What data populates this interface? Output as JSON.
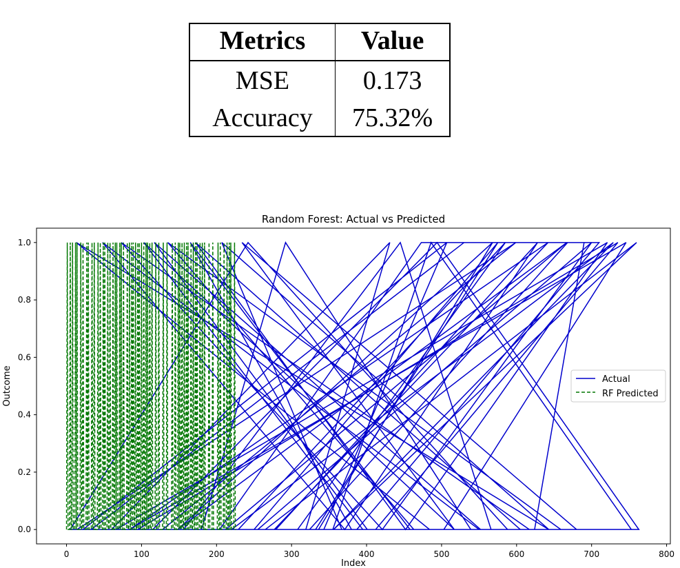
{
  "table": {
    "headers": [
      "Metrics",
      "Value"
    ],
    "rows": [
      [
        "MSE",
        "0.173"
      ],
      [
        "Accuracy",
        "75.32%"
      ]
    ]
  },
  "chart_data": {
    "type": "line",
    "title": "Random Forest: Actual vs Predicted",
    "xlabel": "Index",
    "ylabel": "Outcome",
    "xlim": [
      -40,
      805
    ],
    "ylim": [
      -0.05,
      1.05
    ],
    "xticks": [
      0,
      100,
      200,
      300,
      400,
      500,
      600,
      700,
      800
    ],
    "yticks": [
      "0.0",
      "0.2",
      "0.4",
      "0.6",
      "0.8",
      "1.0"
    ],
    "grid": false,
    "legend_position": "center-right",
    "series": [
      {
        "name": "Actual",
        "color": "#0000cc",
        "style": "solid",
        "x": [
          668,
          324,
          624,
          690,
          473,
          204,
          97,
          336,
          568,
          148,
          667,
          212,
          199,
          265,
          760,
          356,
          729,
          220,
          33,
          530,
          710,
          387,
          552,
          117,
          401,
          5,
          242,
          588,
          60,
          431,
          319,
          503,
          746,
          84,
          642,
          277,
          458,
          165,
          380,
          711,
          14,
          599,
          128,
          355,
          486,
          753,
          41,
          539,
          292,
          180,
          617,
          73,
          421,
          700,
          255,
          343,
          507,
          22,
          659,
          135,
          463,
          229,
          585,
          308,
          95,
          735,
          412,
          190,
          550,
          48,
          371,
          628,
          279,
          115,
          494,
          763,
          156,
          445,
          566,
          30,
          680,
          234,
          517,
          103,
          395,
          605,
          172,
          452,
          721,
          66,
          332,
          575,
          250,
          484,
          13,
          643,
          207,
          367,
          534,
          750
        ],
        "y": [
          1,
          0,
          0,
          1,
          1,
          0,
          0,
          0,
          1,
          0,
          1,
          0,
          0,
          0,
          1,
          0,
          1,
          0,
          0,
          1,
          1,
          0,
          0,
          1,
          0,
          0,
          1,
          0,
          0,
          1,
          0,
          0,
          1,
          0,
          1,
          0,
          0,
          1,
          0,
          0,
          0,
          1,
          0,
          0,
          1,
          0,
          0,
          0,
          1,
          0,
          0,
          1,
          0,
          1,
          0,
          0,
          1,
          0,
          0,
          1,
          0,
          0,
          1,
          0,
          0,
          1,
          0,
          0,
          0,
          1,
          0,
          1,
          0,
          0,
          1,
          0,
          0,
          1,
          0,
          0,
          0,
          1,
          0,
          1,
          0,
          0,
          1,
          0,
          1,
          0,
          0,
          1,
          0,
          0,
          1,
          0,
          1,
          0,
          0,
          0
        ]
      },
      {
        "name": "RF Predicted",
        "color": "#007700",
        "style": "dashed",
        "y": [
          0,
          1,
          0,
          0,
          0,
          1,
          0,
          0,
          1,
          0,
          0,
          0,
          1,
          0,
          1,
          0,
          0,
          0,
          0,
          1,
          0,
          0,
          1,
          0,
          0,
          0,
          0,
          1,
          0,
          1,
          0,
          0,
          0,
          0,
          1,
          0,
          0,
          1,
          0,
          0,
          0,
          0,
          1,
          0,
          0,
          1,
          0,
          0,
          0,
          1,
          0,
          1,
          0,
          0,
          0,
          1,
          0,
          0,
          1,
          0,
          0,
          0,
          1,
          0,
          0,
          1,
          0,
          1,
          0,
          0,
          0,
          1,
          0,
          1,
          0,
          0,
          1,
          0,
          0,
          0,
          0,
          1,
          0,
          0,
          1,
          0,
          0,
          1,
          0,
          1,
          0,
          0,
          1,
          0,
          0,
          1,
          0,
          1,
          0,
          0,
          1,
          0,
          0,
          1,
          0,
          0,
          1,
          0,
          1,
          0,
          0,
          1,
          0,
          0,
          1,
          0,
          0,
          0,
          0,
          1,
          0,
          0,
          0,
          1,
          0,
          0,
          0,
          0,
          0,
          1,
          0,
          0,
          0,
          0,
          1,
          0,
          0,
          0,
          0,
          0,
          0,
          1,
          0,
          0,
          0,
          1,
          0,
          0,
          0,
          1,
          0,
          1,
          0,
          0,
          1,
          0,
          0,
          1,
          0,
          0,
          1,
          0,
          1,
          0,
          0,
          0,
          1,
          0,
          0,
          1,
          0,
          0,
          1,
          0,
          1,
          0,
          0,
          0,
          1,
          0,
          0,
          1,
          0,
          0,
          1,
          0,
          0,
          0,
          0,
          0,
          1,
          0,
          0,
          0,
          0,
          1,
          0,
          0,
          0,
          0,
          0,
          0,
          1,
          0,
          0,
          1,
          0,
          0,
          0,
          0,
          1,
          0,
          0,
          0,
          1,
          0,
          0,
          1,
          0,
          1,
          0,
          0,
          0,
          0,
          1,
          0,
          0
        ]
      }
    ]
  }
}
